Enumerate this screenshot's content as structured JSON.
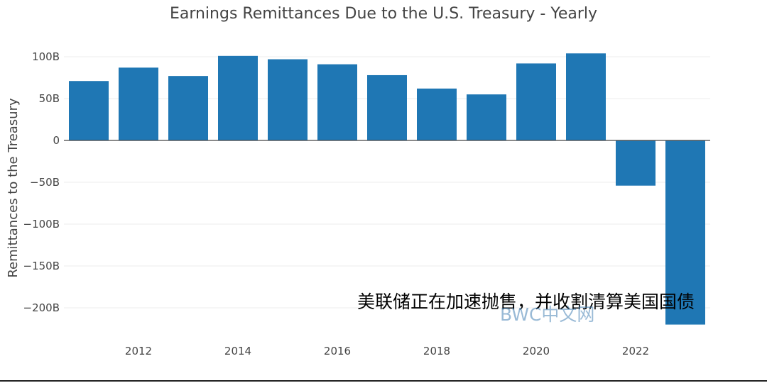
{
  "chart_data": {
    "type": "bar",
    "title": "Earnings Remittances Due to the U.S. Treasury - Yearly",
    "xlabel": "",
    "ylabel": "Remittances to the Treasury",
    "x": [
      2011,
      2012,
      2013,
      2014,
      2015,
      2016,
      2017,
      2018,
      2019,
      2020,
      2021,
      2022,
      2023
    ],
    "values": [
      71,
      87,
      77,
      101,
      97,
      91,
      78,
      62,
      55,
      92,
      104,
      -54,
      -220
    ],
    "unit": "B",
    "ylim": [
      -220,
      110
    ],
    "y_ticks": [
      100,
      50,
      0,
      -50,
      -100,
      -150,
      -200
    ],
    "y_tick_labels": [
      "100B",
      "50B",
      "0",
      "−50B",
      "−100B",
      "−150B",
      "−200B"
    ],
    "x_ticks": [
      2012,
      2014,
      2016,
      2018,
      2020,
      2022
    ],
    "x_tick_labels": [
      "2012",
      "2014",
      "2016",
      "2018",
      "2020",
      "2022"
    ],
    "grid": true,
    "bar_color": "#1f77b4"
  },
  "overlay": {
    "caption": "美联储正在加速抛售，并收割清算美国国债",
    "watermark": "BWC中文网"
  }
}
